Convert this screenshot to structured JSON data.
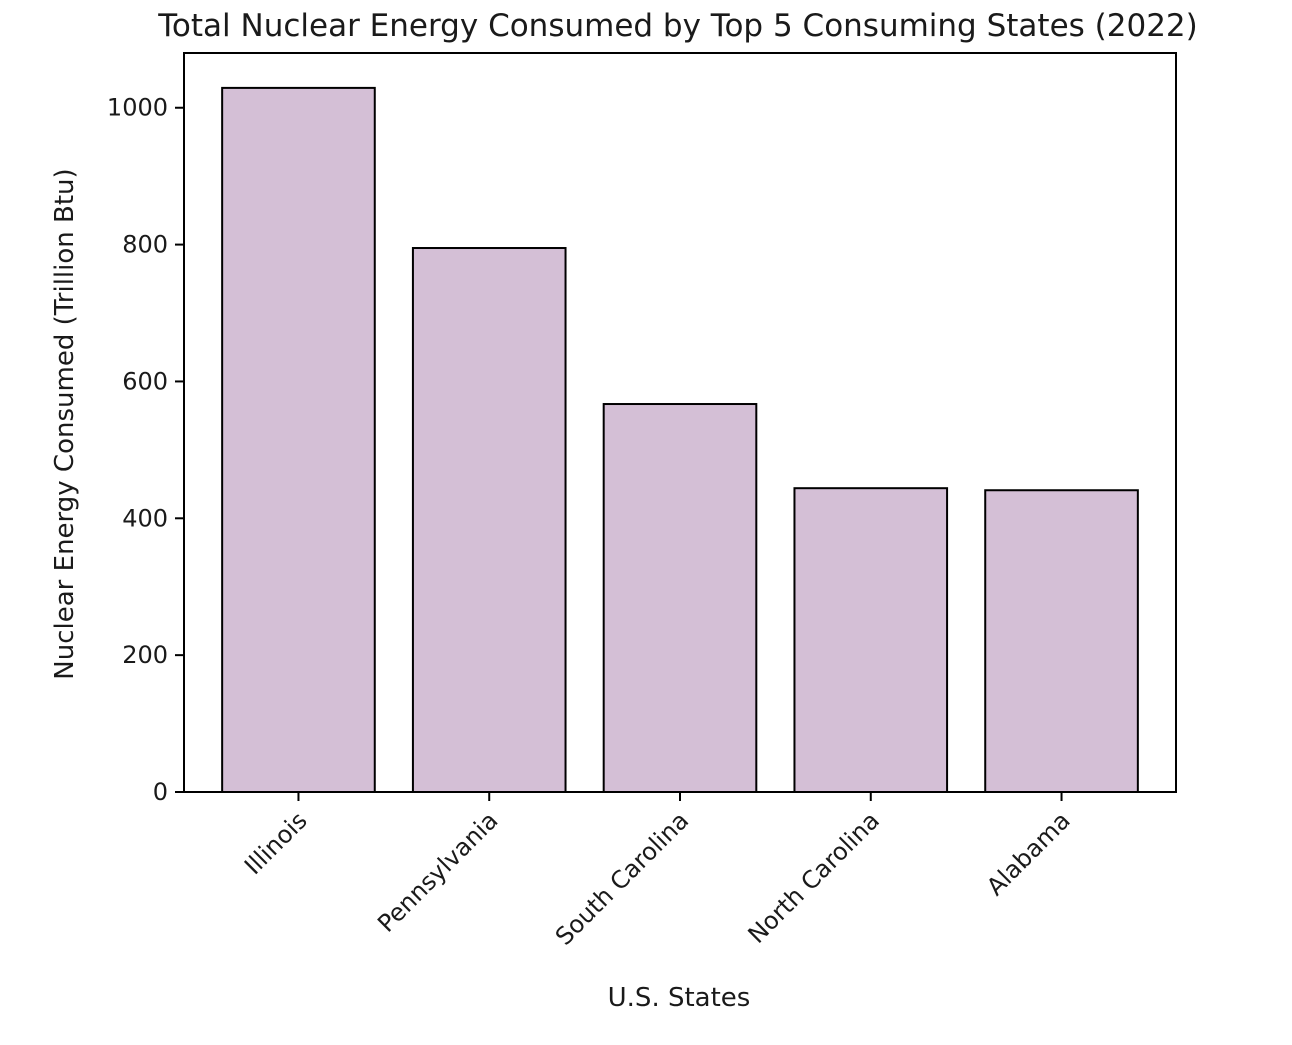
{
  "chart_data": {
    "type": "bar",
    "title": "Total Nuclear Energy Consumed by Top 5 Consuming States (2022)",
    "xlabel": "U.S. States",
    "ylabel": "Nuclear Energy Consumed (Trillion Btu)",
    "categories": [
      "Illinois",
      "Pennsylvania",
      "South Carolina",
      "North Carolina",
      "Alabama"
    ],
    "values": [
      1029,
      795,
      567,
      444,
      441
    ],
    "ylim": [
      0,
      1080
    ],
    "yticks": [
      0,
      200,
      400,
      600,
      800,
      1000
    ],
    "grid": false,
    "bar_color": "#d4bfd6",
    "edge_color": "#000000"
  }
}
